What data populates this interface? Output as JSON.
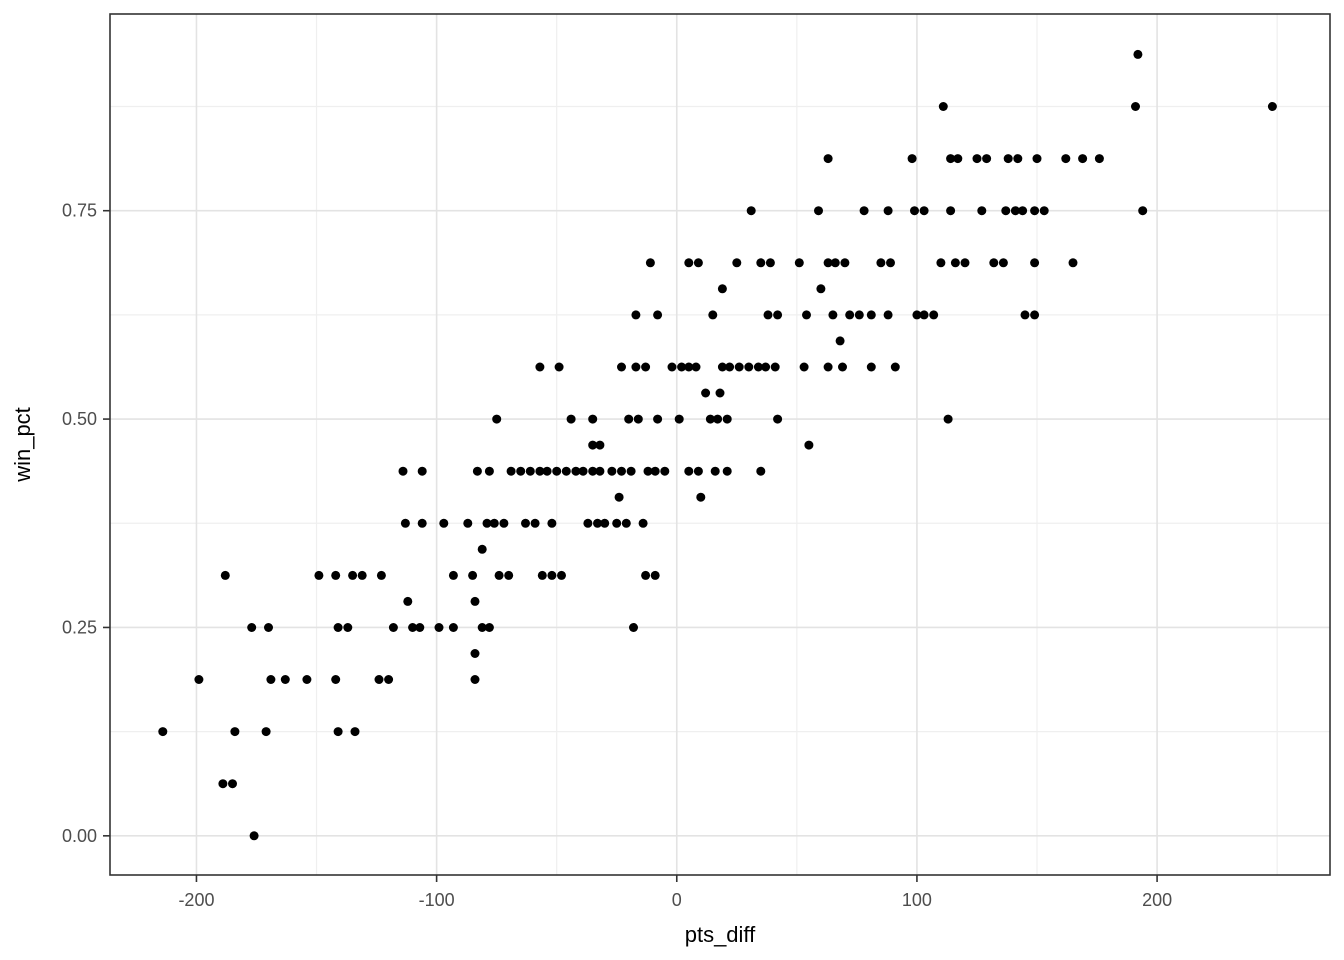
{
  "figure": {
    "x_axis_title": "pts_diff",
    "y_axis_title": "win_pct"
  },
  "chart_data": {
    "type": "scatter",
    "title": "",
    "xlabel": "pts_diff",
    "ylabel": "win_pct",
    "xlim": [
      -236,
      272
    ],
    "ylim": [
      -0.047,
      0.986
    ],
    "grid": "on",
    "legend": "none",
    "x_ticks": [
      -200,
      -100,
      0,
      100,
      200
    ],
    "x_tick_labels": [
      "-200",
      "-100",
      "0",
      "100",
      "200"
    ],
    "x_minor_ticks": [
      -150,
      -50,
      50,
      150,
      250
    ],
    "y_ticks": [
      0.0,
      0.25,
      0.5,
      0.75
    ],
    "y_tick_labels": [
      "0.00",
      "0.25",
      "0.50",
      "0.75"
    ],
    "y_minor_ticks": [
      0.125,
      0.375,
      0.625,
      0.875
    ],
    "colors": {
      "point": "#000000",
      "panel_background": "#ffffff",
      "panel_border": "#333333",
      "grid_major": "#e3e3e3",
      "grid_minor": "#efefef",
      "tick_mark": "#333333",
      "tick_label": "#4d4d4d",
      "axis_title": "#000000"
    },
    "point_radius_px": 4.5,
    "points": [
      [
        -176,
        0.0
      ],
      [
        -189,
        0.0625
      ],
      [
        -185,
        0.0625
      ],
      [
        -214,
        0.125
      ],
      [
        -184,
        0.125
      ],
      [
        -171,
        0.125
      ],
      [
        -141,
        0.125
      ],
      [
        -134,
        0.125
      ],
      [
        -199,
        0.1875
      ],
      [
        -169,
        0.1875
      ],
      [
        -163,
        0.1875
      ],
      [
        -154,
        0.1875
      ],
      [
        -142,
        0.1875
      ],
      [
        -124,
        0.1875
      ],
      [
        -120,
        0.1875
      ],
      [
        -84,
        0.1875
      ],
      [
        -84,
        0.21875
      ],
      [
        -177,
        0.25
      ],
      [
        -170,
        0.25
      ],
      [
        -141,
        0.25
      ],
      [
        -137,
        0.25
      ],
      [
        -118,
        0.25
      ],
      [
        -110,
        0.25
      ],
      [
        -107,
        0.25
      ],
      [
        -99,
        0.25
      ],
      [
        -93,
        0.25
      ],
      [
        -81,
        0.25
      ],
      [
        -78,
        0.25
      ],
      [
        -18,
        0.25
      ],
      [
        -112,
        0.28125
      ],
      [
        -84,
        0.28125
      ],
      [
        -188,
        0.3125
      ],
      [
        -149,
        0.3125
      ],
      [
        -142,
        0.3125
      ],
      [
        -135,
        0.3125
      ],
      [
        -131,
        0.3125
      ],
      [
        -123,
        0.3125
      ],
      [
        -93,
        0.3125
      ],
      [
        -85,
        0.3125
      ],
      [
        -74,
        0.3125
      ],
      [
        -70,
        0.3125
      ],
      [
        -56,
        0.3125
      ],
      [
        -52,
        0.3125
      ],
      [
        -48,
        0.3125
      ],
      [
        -13,
        0.3125
      ],
      [
        -9,
        0.3125
      ],
      [
        -81,
        0.34375
      ],
      [
        -113,
        0.375
      ],
      [
        -106,
        0.375
      ],
      [
        -97,
        0.375
      ],
      [
        -87,
        0.375
      ],
      [
        -79,
        0.375
      ],
      [
        -76,
        0.375
      ],
      [
        -72,
        0.375
      ],
      [
        -63,
        0.375
      ],
      [
        -59,
        0.375
      ],
      [
        -52,
        0.375
      ],
      [
        -37,
        0.375
      ],
      [
        -33,
        0.375
      ],
      [
        -30,
        0.375
      ],
      [
        -25,
        0.375
      ],
      [
        -21,
        0.375
      ],
      [
        -14,
        0.375
      ],
      [
        -24,
        0.40625
      ],
      [
        10,
        0.40625
      ],
      [
        -114,
        0.4375
      ],
      [
        -106,
        0.4375
      ],
      [
        -83,
        0.4375
      ],
      [
        -78,
        0.4375
      ],
      [
        -69,
        0.4375
      ],
      [
        -65,
        0.4375
      ],
      [
        -61,
        0.4375
      ],
      [
        -57,
        0.4375
      ],
      [
        -54,
        0.4375
      ],
      [
        -50,
        0.4375
      ],
      [
        -46,
        0.4375
      ],
      [
        -42,
        0.4375
      ],
      [
        -39,
        0.4375
      ],
      [
        -35,
        0.4375
      ],
      [
        -32,
        0.4375
      ],
      [
        -27,
        0.4375
      ],
      [
        -23,
        0.4375
      ],
      [
        -19,
        0.4375
      ],
      [
        -12,
        0.4375
      ],
      [
        -9,
        0.4375
      ],
      [
        -5,
        0.4375
      ],
      [
        5,
        0.4375
      ],
      [
        9,
        0.4375
      ],
      [
        16,
        0.4375
      ],
      [
        21,
        0.4375
      ],
      [
        35,
        0.4375
      ],
      [
        -35,
        0.46875
      ],
      [
        -32,
        0.46875
      ],
      [
        55,
        0.46875
      ],
      [
        -75,
        0.5
      ],
      [
        -44,
        0.5
      ],
      [
        -35,
        0.5
      ],
      [
        -20,
        0.5
      ],
      [
        -16,
        0.5
      ],
      [
        -8,
        0.5
      ],
      [
        1,
        0.5
      ],
      [
        14,
        0.5
      ],
      [
        17,
        0.5
      ],
      [
        21,
        0.5
      ],
      [
        42,
        0.5
      ],
      [
        113,
        0.5
      ],
      [
        12,
        0.53125
      ],
      [
        18,
        0.53125
      ],
      [
        -57,
        0.5625
      ],
      [
        -49,
        0.5625
      ],
      [
        -23,
        0.5625
      ],
      [
        -17,
        0.5625
      ],
      [
        -13,
        0.5625
      ],
      [
        -2,
        0.5625
      ],
      [
        2,
        0.5625
      ],
      [
        5,
        0.5625
      ],
      [
        8,
        0.5625
      ],
      [
        19,
        0.5625
      ],
      [
        22,
        0.5625
      ],
      [
        26,
        0.5625
      ],
      [
        30,
        0.5625
      ],
      [
        34,
        0.5625
      ],
      [
        37,
        0.5625
      ],
      [
        41,
        0.5625
      ],
      [
        53,
        0.5625
      ],
      [
        63,
        0.5625
      ],
      [
        69,
        0.5625
      ],
      [
        81,
        0.5625
      ],
      [
        91,
        0.5625
      ],
      [
        68,
        0.59375
      ],
      [
        -17,
        0.625
      ],
      [
        -8,
        0.625
      ],
      [
        15,
        0.625
      ],
      [
        38,
        0.625
      ],
      [
        42,
        0.625
      ],
      [
        54,
        0.625
      ],
      [
        65,
        0.625
      ],
      [
        72,
        0.625
      ],
      [
        76,
        0.625
      ],
      [
        81,
        0.625
      ],
      [
        88,
        0.625
      ],
      [
        100,
        0.625
      ],
      [
        103,
        0.625
      ],
      [
        107,
        0.625
      ],
      [
        145,
        0.625
      ],
      [
        149,
        0.625
      ],
      [
        19,
        0.65625
      ],
      [
        60,
        0.65625
      ],
      [
        -11,
        0.6875
      ],
      [
        5,
        0.6875
      ],
      [
        9,
        0.6875
      ],
      [
        25,
        0.6875
      ],
      [
        35,
        0.6875
      ],
      [
        39,
        0.6875
      ],
      [
        51,
        0.6875
      ],
      [
        63,
        0.6875
      ],
      [
        66,
        0.6875
      ],
      [
        70,
        0.6875
      ],
      [
        85,
        0.6875
      ],
      [
        89,
        0.6875
      ],
      [
        110,
        0.6875
      ],
      [
        116,
        0.6875
      ],
      [
        120,
        0.6875
      ],
      [
        132,
        0.6875
      ],
      [
        136,
        0.6875
      ],
      [
        149,
        0.6875
      ],
      [
        165,
        0.6875
      ],
      [
        31,
        0.75
      ],
      [
        59,
        0.75
      ],
      [
        78,
        0.75
      ],
      [
        88,
        0.75
      ],
      [
        99,
        0.75
      ],
      [
        103,
        0.75
      ],
      [
        114,
        0.75
      ],
      [
        127,
        0.75
      ],
      [
        137,
        0.75
      ],
      [
        141,
        0.75
      ],
      [
        144,
        0.75
      ],
      [
        149,
        0.75
      ],
      [
        153,
        0.75
      ],
      [
        194,
        0.75
      ],
      [
        63,
        0.8125
      ],
      [
        98,
        0.8125
      ],
      [
        114,
        0.8125
      ],
      [
        117,
        0.8125
      ],
      [
        125,
        0.8125
      ],
      [
        129,
        0.8125
      ],
      [
        138,
        0.8125
      ],
      [
        142,
        0.8125
      ],
      [
        150,
        0.8125
      ],
      [
        162,
        0.8125
      ],
      [
        169,
        0.8125
      ],
      [
        176,
        0.8125
      ],
      [
        111,
        0.875
      ],
      [
        191,
        0.875
      ],
      [
        248,
        0.875
      ],
      [
        192,
        0.9375
      ]
    ]
  }
}
